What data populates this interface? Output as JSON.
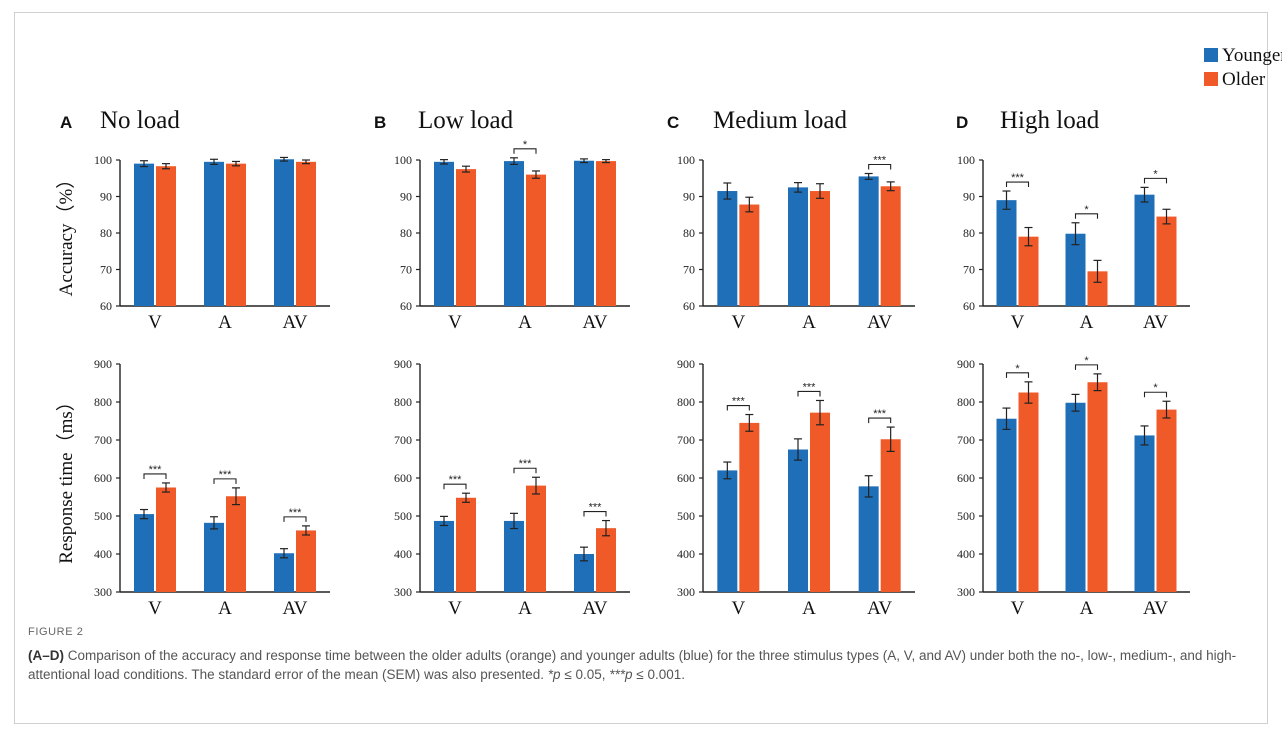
{
  "legend": {
    "items": [
      {
        "name": "Younger",
        "color": "#1f6fb8"
      },
      {
        "name": "Older",
        "color": "#f05a28"
      }
    ]
  },
  "chart_data": [
    {
      "type": "bar",
      "panel": "A",
      "title": "No load",
      "ylabel": "Accuracy（%）",
      "ylim": [
        60,
        100
      ],
      "yticks": [
        60,
        70,
        80,
        90,
        100
      ],
      "categories": [
        "V",
        "A",
        "AV"
      ],
      "series": [
        {
          "name": "Younger",
          "values": [
            99,
            99.5,
            100.2
          ],
          "errors": [
            0.8,
            0.7,
            0.5
          ]
        },
        {
          "name": "Older",
          "values": [
            98.3,
            99,
            99.5
          ],
          "errors": [
            0.7,
            0.6,
            0.5
          ]
        }
      ],
      "significance": [
        "",
        "",
        ""
      ]
    },
    {
      "type": "bar",
      "panel": "B",
      "title": "Low load",
      "ylim": [
        60,
        100
      ],
      "yticks": [
        60,
        70,
        80,
        90,
        100
      ],
      "categories": [
        "V",
        "A",
        "AV"
      ],
      "series": [
        {
          "name": "Younger",
          "values": [
            99.5,
            99.7,
            99.8
          ],
          "errors": [
            0.6,
            0.9,
            0.5
          ]
        },
        {
          "name": "Older",
          "values": [
            97.5,
            96,
            99.7
          ],
          "errors": [
            0.8,
            1,
            0.4
          ]
        }
      ],
      "significance": [
        "",
        "*",
        ""
      ]
    },
    {
      "type": "bar",
      "panel": "C",
      "title": "Medium load",
      "ylim": [
        60,
        100
      ],
      "yticks": [
        60,
        70,
        80,
        90,
        100
      ],
      "categories": [
        "V",
        "A",
        "AV"
      ],
      "series": [
        {
          "name": "Younger",
          "values": [
            91.5,
            92.5,
            95.5
          ],
          "errors": [
            2.2,
            1.3,
            0.8
          ]
        },
        {
          "name": "Older",
          "values": [
            87.8,
            91.5,
            92.8
          ],
          "errors": [
            2,
            2,
            1.2
          ]
        }
      ],
      "significance": [
        "",
        "",
        "***"
      ]
    },
    {
      "type": "bar",
      "panel": "D",
      "title": "High load",
      "ylim": [
        60,
        100
      ],
      "yticks": [
        60,
        70,
        80,
        90,
        100
      ],
      "categories": [
        "V",
        "A",
        "AV"
      ],
      "series": [
        {
          "name": "Younger",
          "values": [
            89,
            79.8,
            90.5
          ],
          "errors": [
            2.5,
            3,
            2
          ]
        },
        {
          "name": "Older",
          "values": [
            79,
            69.5,
            84.5
          ],
          "errors": [
            2.5,
            3,
            2
          ]
        }
      ],
      "significance": [
        "***",
        "*",
        "*"
      ]
    },
    {
      "type": "bar",
      "panel": "A",
      "ylabel": "Response time（ms）",
      "ylim": [
        300,
        900
      ],
      "yticks": [
        300,
        400,
        500,
        600,
        700,
        800,
        900
      ],
      "categories": [
        "V",
        "A",
        "AV"
      ],
      "series": [
        {
          "name": "Younger",
          "values": [
            505,
            482,
            402
          ],
          "errors": [
            12,
            16,
            12
          ]
        },
        {
          "name": "Older",
          "values": [
            575,
            552,
            462
          ],
          "errors": [
            12,
            22,
            12
          ]
        }
      ],
      "significance": [
        "***",
        "***",
        "***"
      ]
    },
    {
      "type": "bar",
      "panel": "B",
      "ylim": [
        300,
        900
      ],
      "yticks": [
        300,
        400,
        500,
        600,
        700,
        800,
        900
      ],
      "categories": [
        "V",
        "A",
        "AV"
      ],
      "series": [
        {
          "name": "Younger",
          "values": [
            487,
            487,
            400
          ],
          "errors": [
            12,
            20,
            18
          ]
        },
        {
          "name": "Older",
          "values": [
            548,
            580,
            468
          ],
          "errors": [
            12,
            22,
            20
          ]
        }
      ],
      "significance": [
        "***",
        "***",
        "***"
      ]
    },
    {
      "type": "bar",
      "panel": "C",
      "ylim": [
        300,
        900
      ],
      "yticks": [
        300,
        400,
        500,
        600,
        700,
        800,
        900
      ],
      "categories": [
        "V",
        "A",
        "AV"
      ],
      "series": [
        {
          "name": "Younger",
          "values": [
            620,
            675,
            578
          ],
          "errors": [
            22,
            28,
            28
          ]
        },
        {
          "name": "Older",
          "values": [
            745,
            772,
            702
          ],
          "errors": [
            22,
            32,
            32
          ]
        }
      ],
      "significance": [
        "***",
        "***",
        "***"
      ]
    },
    {
      "type": "bar",
      "panel": "D",
      "ylim": [
        300,
        900
      ],
      "yticks": [
        300,
        400,
        500,
        600,
        700,
        800,
        900
      ],
      "categories": [
        "V",
        "A",
        "AV"
      ],
      "series": [
        {
          "name": "Younger",
          "values": [
            756,
            798,
            712
          ],
          "errors": [
            28,
            22,
            25
          ]
        },
        {
          "name": "Older",
          "values": [
            825,
            852,
            780
          ],
          "errors": [
            28,
            22,
            22
          ]
        }
      ],
      "significance": [
        "*",
        "*",
        "*"
      ]
    }
  ],
  "caption": {
    "label": "FIGURE 2",
    "lead": "(A–D)",
    "text": " Comparison of the accuracy and response time between the older adults (orange) and younger adults (blue) for the three stimulus types (A, V, and AV) under both the no-, low-, medium-, and high-attentional load conditions. The standard error of the mean (SEM) was also presented. ",
    "note1_p": "*p",
    "note1": " ≤ 0.05, ",
    "note2_p": "***p",
    "note2": " ≤ 0.001."
  }
}
